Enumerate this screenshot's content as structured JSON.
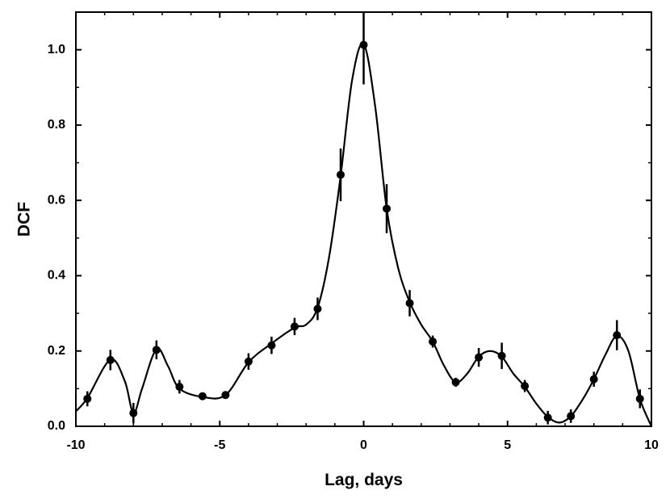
{
  "chart_data": {
    "type": "scatter",
    "title": "",
    "xlabel": "Lag, days",
    "ylabel": "DCF",
    "xlim": [
      -10,
      10
    ],
    "ylim": [
      0.0,
      1.1
    ],
    "xticks": [
      -10,
      -5,
      0,
      5,
      10
    ],
    "yticks": [
      0.0,
      0.2,
      0.4,
      0.6,
      0.8,
      1.0
    ],
    "xtick_labels": [
      "-10",
      "-5",
      "0",
      "5",
      "10"
    ],
    "ytick_labels": [
      "0.0",
      "0.2",
      "0.4",
      "0.6",
      "0.8",
      "1.0"
    ],
    "grid": false,
    "series": [
      {
        "type": "scatter",
        "marker": "filled-circle",
        "color": "#000000",
        "x": [
          -9.6,
          -8.8,
          -8.0,
          -7.2,
          -6.4,
          -5.6,
          -4.8,
          -4.0,
          -3.2,
          -2.4,
          -1.6,
          -0.8,
          0.0,
          0.8,
          1.6,
          2.4,
          3.2,
          4.0,
          4.8,
          5.6,
          6.4,
          7.2,
          8.0,
          8.8,
          9.6
        ],
        "y": [
          0.073,
          0.176,
          0.035,
          0.203,
          0.105,
          0.08,
          0.083,
          0.172,
          0.215,
          0.265,
          0.312,
          0.668,
          1.013,
          0.578,
          0.327,
          0.225,
          0.117,
          0.183,
          0.187,
          0.107,
          0.023,
          0.027,
          0.125,
          0.242,
          0.073
        ],
        "yerr": [
          0.02,
          0.027,
          0.027,
          0.025,
          0.018,
          0.01,
          0.01,
          0.022,
          0.023,
          0.023,
          0.03,
          0.07,
          0.105,
          0.065,
          0.035,
          0.016,
          0.012,
          0.025,
          0.035,
          0.016,
          0.018,
          0.018,
          0.02,
          0.04,
          0.025
        ]
      },
      {
        "type": "line",
        "color": "#000000",
        "x": [
          -10,
          -9.6,
          -8.8,
          -8.3,
          -8.0,
          -7.7,
          -7.2,
          -6.8,
          -6.4,
          -5.6,
          -4.8,
          -4.0,
          -3.2,
          -2.4,
          -2.0,
          -1.6,
          -1.2,
          -0.8,
          -0.4,
          0.0,
          0.4,
          0.8,
          1.2,
          1.6,
          2.0,
          2.4,
          2.8,
          3.2,
          3.6,
          4.0,
          4.4,
          4.8,
          5.2,
          5.6,
          6.0,
          6.4,
          6.8,
          7.2,
          7.6,
          8.0,
          8.4,
          8.8,
          9.2,
          9.6,
          10.0
        ],
        "y": [
          0.04,
          0.075,
          0.177,
          0.12,
          0.035,
          0.1,
          0.205,
          0.16,
          0.1,
          0.078,
          0.083,
          0.17,
          0.22,
          0.262,
          0.27,
          0.315,
          0.45,
          0.665,
          0.92,
          1.015,
          0.85,
          0.578,
          0.42,
          0.33,
          0.27,
          0.225,
          0.16,
          0.117,
          0.14,
          0.185,
          0.2,
          0.185,
          0.14,
          0.105,
          0.06,
          0.025,
          0.01,
          0.027,
          0.07,
          0.125,
          0.19,
          0.24,
          0.2,
          0.073,
          0.0
        ]
      }
    ]
  }
}
